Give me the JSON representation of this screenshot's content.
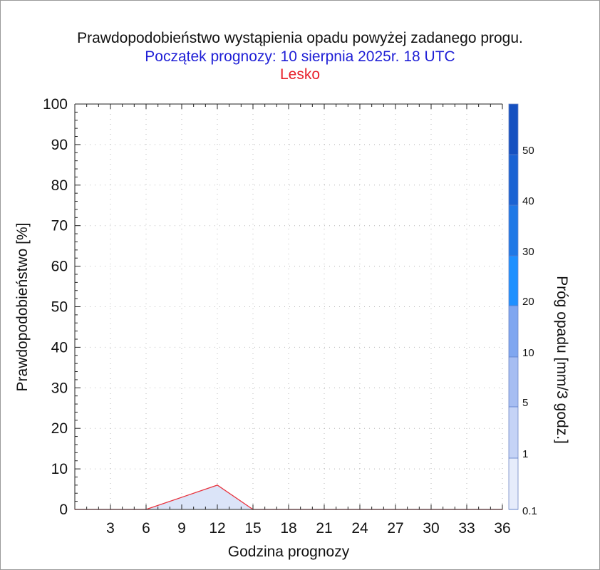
{
  "header": {
    "title": "Prawdopodobieństwo wystąpienia opadu powyżej zadanego progu.",
    "subtitle": "Początek prognozy: 10 sierpnia 2025r. 18 UTC",
    "location": "Lesko",
    "subtitle_color": "#1f1fd6",
    "location_color": "#e8202a"
  },
  "chart_data": {
    "type": "area",
    "xlabel": "Godzina prognozy",
    "ylabel": "Prawdopodobieństwo [%]",
    "xlim": [
      0,
      36
    ],
    "ylim": [
      0,
      100
    ],
    "xticks": [
      3,
      6,
      9,
      12,
      15,
      18,
      21,
      24,
      27,
      30,
      33,
      36
    ],
    "yticks": [
      0,
      10,
      20,
      30,
      40,
      50,
      60,
      70,
      80,
      90,
      100
    ],
    "grid": true,
    "series": [
      {
        "threshold": "0.1",
        "x": [
          0,
          3,
          6,
          9,
          12,
          15,
          18,
          21,
          24,
          27,
          30,
          33,
          36
        ],
        "values": [
          0,
          0,
          0,
          3,
          6,
          0,
          0,
          0,
          0,
          0,
          0,
          0,
          0
        ],
        "fill_color": "#dbe4f8",
        "line_color": "#e8303a"
      }
    ],
    "colorbar": {
      "label": "Próg opadu [mm/3 godz.]",
      "tick_labels": [
        "0.1",
        "1",
        "5",
        "10",
        "20",
        "30",
        "40",
        "50"
      ],
      "colors": [
        "#e6ecfb",
        "#c5d3f6",
        "#a6bdf2",
        "#7fa6f0",
        "#1e90ff",
        "#1f78e6",
        "#1a62d3",
        "#1550c0",
        "#0f3ea8"
      ]
    }
  }
}
